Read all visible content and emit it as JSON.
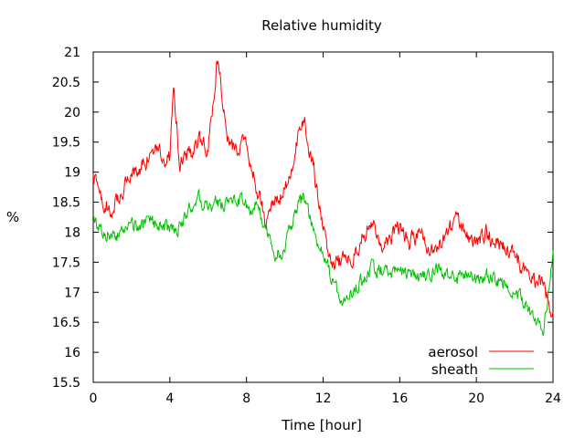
{
  "chart_data": {
    "type": "line",
    "title": "Relative humidity",
    "xlabel": "Time [hour]",
    "ylabel": "%",
    "xlim": [
      0,
      24
    ],
    "ylim": [
      15.5,
      21
    ],
    "xticks": [
      0,
      4,
      8,
      12,
      16,
      20,
      24
    ],
    "yticks": [
      15.5,
      16,
      16.5,
      17,
      17.5,
      18,
      18.5,
      19,
      19.5,
      20,
      20.5,
      21
    ],
    "legend_position": "bottom-right",
    "grid": false,
    "series": [
      {
        "name": "aerosol",
        "color": "#ff0000",
        "x": [
          0,
          0.5,
          1,
          1.5,
          2,
          2.5,
          3,
          3.5,
          4,
          4.2,
          4.5,
          5,
          5.5,
          6,
          6.5,
          7,
          7.5,
          8,
          8.5,
          9,
          9.5,
          10,
          10.5,
          11,
          11.5,
          12,
          12.5,
          13,
          13.5,
          14,
          14.5,
          15,
          15.5,
          16,
          16.5,
          17,
          17.5,
          18,
          18.5,
          19,
          19.5,
          20,
          20.5,
          21,
          21.5,
          22,
          22.5,
          23,
          23.5,
          24
        ],
        "y": [
          18.9,
          18.5,
          18.4,
          18.7,
          19.0,
          19.1,
          19.3,
          19.3,
          19.2,
          20.6,
          19.1,
          19.3,
          19.5,
          19.4,
          20.9,
          19.5,
          19.3,
          19.5,
          18.8,
          18.2,
          18.5,
          18.7,
          19.3,
          19.9,
          19.1,
          18.0,
          17.5,
          17.5,
          17.6,
          17.9,
          18.2,
          17.8,
          17.9,
          18.1,
          17.8,
          18.0,
          17.7,
          17.8,
          18.0,
          18.2,
          17.9,
          17.9,
          18.0,
          17.8,
          17.7,
          17.6,
          17.4,
          17.2,
          17.1,
          16.6
        ]
      },
      {
        "name": "sheath",
        "color": "#00c000",
        "x": [
          0,
          0.5,
          1,
          1.5,
          2,
          2.5,
          3,
          3.5,
          4,
          4.5,
          5,
          5.5,
          6,
          6.5,
          7,
          7.5,
          8,
          8.5,
          9,
          9.5,
          10,
          10.5,
          11,
          11.5,
          12,
          12.5,
          13,
          13.5,
          14,
          14.5,
          15,
          15.5,
          16,
          16.5,
          17,
          17.5,
          18,
          18.5,
          19,
          19.5,
          20,
          20.5,
          21,
          21.5,
          22,
          22.5,
          23,
          23.5,
          24
        ],
        "y": [
          18.2,
          18.0,
          17.9,
          18.0,
          18.1,
          18.1,
          18.2,
          18.1,
          18.0,
          18.1,
          18.4,
          18.6,
          18.4,
          18.5,
          18.5,
          18.6,
          18.4,
          18.4,
          18.1,
          17.6,
          17.7,
          18.3,
          18.6,
          18.0,
          17.6,
          17.2,
          16.8,
          17.0,
          17.2,
          17.4,
          17.4,
          17.3,
          17.4,
          17.3,
          17.2,
          17.3,
          17.4,
          17.3,
          17.2,
          17.3,
          17.2,
          17.3,
          17.2,
          17.2,
          17.0,
          16.8,
          16.6,
          16.4,
          17.6
        ]
      }
    ]
  }
}
